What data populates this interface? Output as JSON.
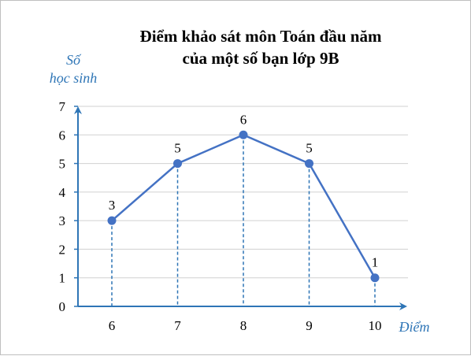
{
  "chart_data": {
    "type": "line",
    "title": [
      "Điểm khảo sát môn Toán đầu năm",
      "của một số bạn lớp 9B"
    ],
    "ylabel": [
      "Số",
      "học sinh"
    ],
    "xlabel": "Điểm",
    "categories": [
      "6",
      "7",
      "8",
      "9",
      "10"
    ],
    "values": [
      3,
      5,
      6,
      5,
      1
    ],
    "ylim": [
      0,
      7
    ],
    "yticks": [
      "0",
      "1",
      "2",
      "3",
      "4",
      "5",
      "6",
      "7"
    ],
    "grid": true,
    "dashed_drop_lines": true,
    "colors": {
      "line": "#4472c4",
      "axis": "#2e75b6",
      "grid": "#d0d0d0",
      "drop": "#2e75b6"
    }
  }
}
